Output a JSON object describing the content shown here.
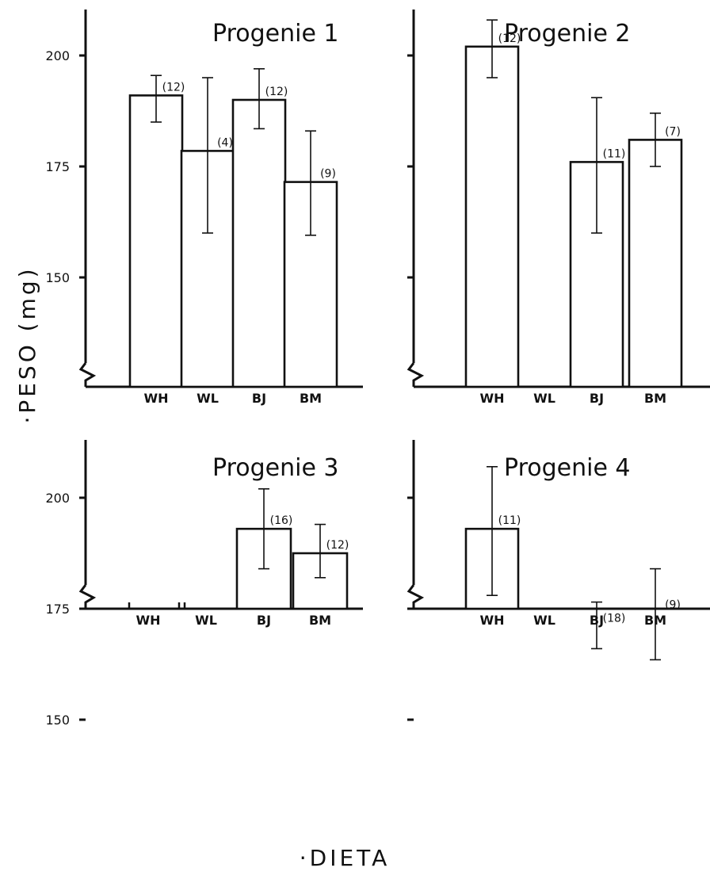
{
  "ylabel": "·PESO (mg)",
  "xlabel": "·DIETA",
  "chart_data": [
    {
      "type": "bar",
      "title": "Progenie 1",
      "categories": [
        "WH",
        "WL",
        "BJ",
        "BM"
      ],
      "values": [
        191,
        178.5,
        190,
        171.5
      ],
      "error_low": [
        185,
        160,
        183.5,
        159.5
      ],
      "error_high": [
        195.5,
        195,
        197,
        183
      ],
      "n_labels": [
        "(12)",
        "(4)",
        "(12)",
        "(9)"
      ],
      "ytick_labels": [
        "200",
        "175",
        "150"
      ],
      "ytick_values": [
        200,
        175,
        150
      ],
      "ylim": [
        130,
        210
      ]
    },
    {
      "type": "bar",
      "title": "Progenie 2",
      "categories": [
        "WH",
        "WL",
        "BJ",
        "BM"
      ],
      "values": [
        202,
        null,
        176,
        181
      ],
      "error_low": [
        195,
        null,
        160,
        175
      ],
      "error_high": [
        208,
        null,
        190.5,
        187
      ],
      "n_labels": [
        "(12)",
        "",
        "(11)",
        "(7)"
      ],
      "ytick_values": [
        200,
        175,
        150
      ],
      "ylim": [
        130,
        210
      ]
    },
    {
      "type": "bar",
      "title": "Progenie 3",
      "categories": [
        "WH",
        "WL",
        "BJ",
        "BM"
      ],
      "values": [
        null,
        null,
        193,
        187.5
      ],
      "error_low": [
        null,
        null,
        184,
        182
      ],
      "error_high": [
        null,
        null,
        202,
        194
      ],
      "n_labels": [
        "",
        "",
        "(16)",
        "(12)"
      ],
      "ytick_labels": [
        "200",
        "175",
        "150"
      ],
      "ytick_values": [
        200,
        175,
        150
      ],
      "ylim": [
        130,
        210
      ]
    },
    {
      "type": "bar",
      "title": "Progenie 4",
      "categories": [
        "WH",
        "WL",
        "BJ",
        "BM"
      ],
      "values": [
        193,
        null,
        171,
        174
      ],
      "error_low": [
        178,
        null,
        166,
        163.5
      ],
      "error_high": [
        207,
        null,
        176.5,
        184
      ],
      "n_labels": [
        "(11)",
        "",
        "(18)",
        "(9)"
      ],
      "ytick_values": [
        200,
        175,
        150
      ],
      "ylim": [
        130,
        210
      ]
    }
  ]
}
